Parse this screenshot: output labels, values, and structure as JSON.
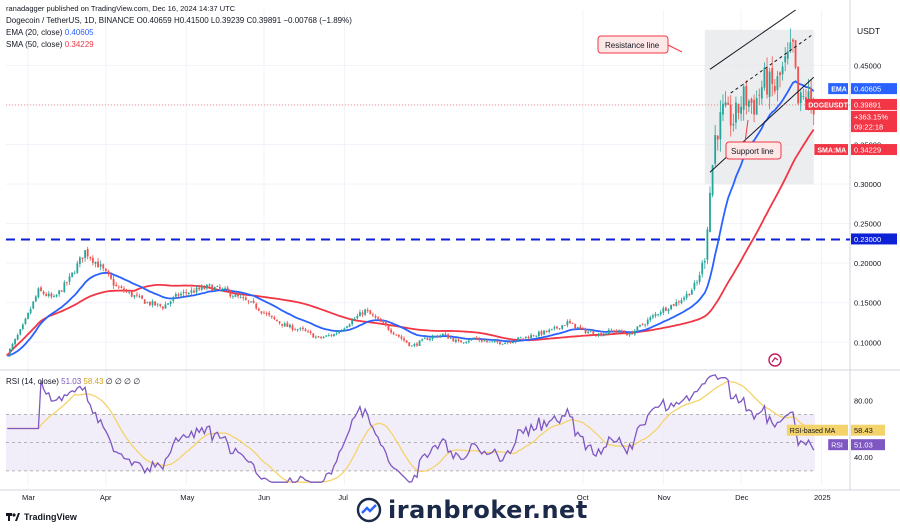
{
  "header": {
    "published": "ranadagger published on TradingView.com, Dec 16, 2024 14:37 UTC",
    "symbol_line": "Dogecoin / TetherUS, 1D, BINANCE",
    "ohlc": "O0.40659 H0.41500 L0.39239 C0.39891 −0.00768 (−1.89%)",
    "ema_label": "EMA (20, close)",
    "ema_value": "0.40605",
    "sma_label": "SMA (50, close)",
    "sma_value": "0.34229",
    "rsi_label": "RSI (14, close)",
    "rsi_value": "51.03",
    "rsi_ma_value": "58.43",
    "rsi_extra": "∅ ∅ ∅ ∅"
  },
  "footer": {
    "tradingview": "TradingView",
    "watermark": "iranbroker.net"
  },
  "colors": {
    "up": "#26a69a",
    "down": "#ef5350",
    "ema": "#2962ff",
    "sma": "#f23645",
    "rsi": "#7e57c2",
    "rsi_ma": "#f5d36b",
    "hline": "#0d22d6"
  },
  "chart_data": {
    "type": "candlestick",
    "currency": "USDT",
    "price_axis": {
      "ticks": [
        "0.45000",
        "0.40000",
        "0.35000",
        "0.30000",
        "0.25000",
        "0.20000",
        "0.15000",
        "0.10000"
      ],
      "range": [
        0.065,
        0.52
      ]
    },
    "rsi_axis": {
      "ticks": [
        "80.00",
        "40.00"
      ],
      "range": [
        20,
        100
      ],
      "bands": [
        70,
        50,
        30
      ]
    },
    "x_axis": [
      "Mar",
      "Apr",
      "May",
      "Jun",
      "Jul",
      "Oct",
      "Nov",
      "Dec",
      "2025"
    ],
    "price_labels": [
      {
        "text": "EMA",
        "value": "0.40605",
        "price": 0.42,
        "color": "#2962ff"
      },
      {
        "text": "DOGEUSDT",
        "value": "0.39891",
        "price": 0.4,
        "color": "#f23645"
      },
      {
        "text": "",
        "value": "+363.15%",
        "price": 0.385,
        "color": "#f23645"
      },
      {
        "text": "",
        "value": "09:22:18",
        "price": 0.372,
        "color": "#f23645"
      },
      {
        "text": "SMA:MA",
        "value": "0.34229",
        "price": 0.343,
        "color": "#f23645"
      },
      {
        "text": "",
        "value": "0.23000",
        "price": 0.23,
        "color": "#0d22d6"
      }
    ],
    "rsi_labels": [
      {
        "text": "RSI-based MA",
        "value": "58.43",
        "color": "#f5d36b"
      },
      {
        "text": "RSI",
        "value": "51.03",
        "color": "#7e57c2"
      }
    ],
    "horizontal_line": 0.23,
    "annotations": [
      {
        "text": "Resistance line"
      },
      {
        "text": "Support line"
      }
    ],
    "price_anchors": [
      [
        0,
        0.085
      ],
      [
        6,
        0.12
      ],
      [
        12,
        0.165
      ],
      [
        18,
        0.155
      ],
      [
        24,
        0.18
      ],
      [
        30,
        0.215
      ],
      [
        36,
        0.195
      ],
      [
        42,
        0.17
      ],
      [
        48,
        0.16
      ],
      [
        54,
        0.15
      ],
      [
        60,
        0.145
      ],
      [
        66,
        0.16
      ],
      [
        72,
        0.165
      ],
      [
        78,
        0.17
      ],
      [
        84,
        0.165
      ],
      [
        90,
        0.155
      ],
      [
        96,
        0.145
      ],
      [
        102,
        0.13
      ],
      [
        108,
        0.12
      ],
      [
        114,
        0.115
      ],
      [
        120,
        0.105
      ],
      [
        126,
        0.11
      ],
      [
        132,
        0.125
      ],
      [
        138,
        0.14
      ],
      [
        144,
        0.125
      ],
      [
        150,
        0.11
      ],
      [
        156,
        0.095
      ],
      [
        162,
        0.105
      ],
      [
        168,
        0.11
      ],
      [
        174,
        0.1
      ],
      [
        180,
        0.105
      ],
      [
        186,
        0.1
      ],
      [
        192,
        0.1
      ],
      [
        198,
        0.105
      ],
      [
        204,
        0.11
      ],
      [
        210,
        0.115
      ],
      [
        216,
        0.125
      ],
      [
        222,
        0.115
      ],
      [
        228,
        0.11
      ],
      [
        234,
        0.115
      ],
      [
        240,
        0.11
      ],
      [
        246,
        0.125
      ],
      [
        252,
        0.14
      ],
      [
        258,
        0.15
      ],
      [
        262,
        0.16
      ],
      [
        266,
        0.175
      ],
      [
        269,
        0.21
      ],
      [
        271,
        0.29
      ],
      [
        273,
        0.36
      ],
      [
        276,
        0.39
      ],
      [
        280,
        0.38
      ],
      [
        284,
        0.41
      ],
      [
        288,
        0.4
      ],
      [
        292,
        0.43
      ],
      [
        296,
        0.42
      ],
      [
        300,
        0.45
      ],
      [
        303,
        0.47
      ],
      [
        305,
        0.4
      ],
      [
        308,
        0.41
      ],
      [
        311,
        0.4
      ]
    ]
  }
}
